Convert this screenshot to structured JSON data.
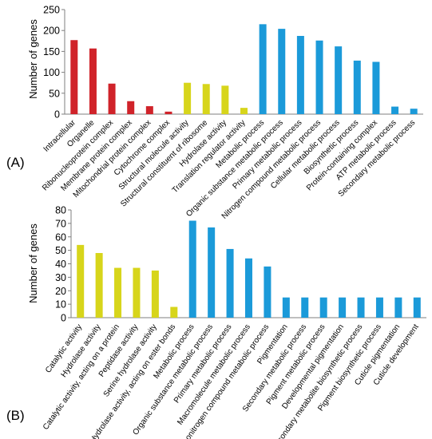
{
  "chart_data": [
    {
      "type": "bar",
      "panel_label": "(A)",
      "ylabel": "Number of genes",
      "ylim": [
        0,
        250
      ],
      "yticks": [
        0,
        50,
        100,
        150,
        200,
        250
      ],
      "grid": false,
      "categories": [
        "Intracellular",
        "Organelle",
        "Ribonucleoprotein complex",
        "Membrane protein complex",
        "Mitochondrial protein complex",
        "Cytochrome complex",
        "Structural molecule activity",
        "Structural constituent of ribosome",
        "Hydrolase activity",
        "Translation regulator activity",
        "Metabolic process",
        "Organic substance metabolic process",
        "Primary metabolic process",
        "Nitrogen compound metabolic process",
        "Cellular metabolic process",
        "Biosynthetic process",
        "Protein-containing complex",
        "ATP metabolic process",
        "Secondary metabolic process"
      ],
      "values": [
        177,
        157,
        73,
        31,
        19,
        6,
        75,
        72,
        68,
        15,
        215,
        204,
        187,
        176,
        162,
        128,
        125,
        18,
        13
      ],
      "bar_colors": [
        "#d0232a",
        "#d0232a",
        "#d0232a",
        "#d0232a",
        "#d0232a",
        "#d0232a",
        "#d7d51b",
        "#d7d51b",
        "#d7d51b",
        "#d7d51b",
        "#1b9ad9",
        "#1b9ad9",
        "#1b9ad9",
        "#1b9ad9",
        "#1b9ad9",
        "#1b9ad9",
        "#1b9ad9",
        "#1b9ad9",
        "#1b9ad9"
      ]
    },
    {
      "type": "bar",
      "panel_label": "(B)",
      "ylabel": "Number of genes",
      "ylim": [
        0,
        80
      ],
      "yticks": [
        0,
        10,
        20,
        30,
        40,
        50,
        60,
        70,
        80
      ],
      "grid": false,
      "categories": [
        "Catalytic activity",
        "Hydrolase activity",
        "Catalytic activity, acting on a protein",
        "Peptidase activity",
        "Serine hydrolase activity",
        "Hydrolase activity, acting on ester bonds",
        "Metabolic process",
        "Organic substance metabolic process",
        "Primary metabolic process",
        "Macromolecule metabolic process",
        "Organonitrogen compound metabolic process",
        "Pigmentation",
        "Secondary metabolic process",
        "Pigment metabolic process",
        "Developmental pigmentation",
        "Secondary metabolite biosynthetic process",
        "Pigment biosynthetic process",
        "Cuticle pigmentation",
        "Cuticle development"
      ],
      "values": [
        54,
        48,
        37,
        37,
        35,
        8,
        72,
        67,
        51,
        44,
        38,
        15,
        15,
        15,
        15,
        15,
        15,
        15,
        15
      ],
      "bar_colors": [
        "#d7d51b",
        "#d7d51b",
        "#d7d51b",
        "#d7d51b",
        "#d7d51b",
        "#d7d51b",
        "#1b9ad9",
        "#1b9ad9",
        "#1b9ad9",
        "#1b9ad9",
        "#1b9ad9",
        "#1b9ad9",
        "#1b9ad9",
        "#1b9ad9",
        "#1b9ad9",
        "#1b9ad9",
        "#1b9ad9",
        "#1b9ad9",
        "#1b9ad9"
      ]
    }
  ]
}
